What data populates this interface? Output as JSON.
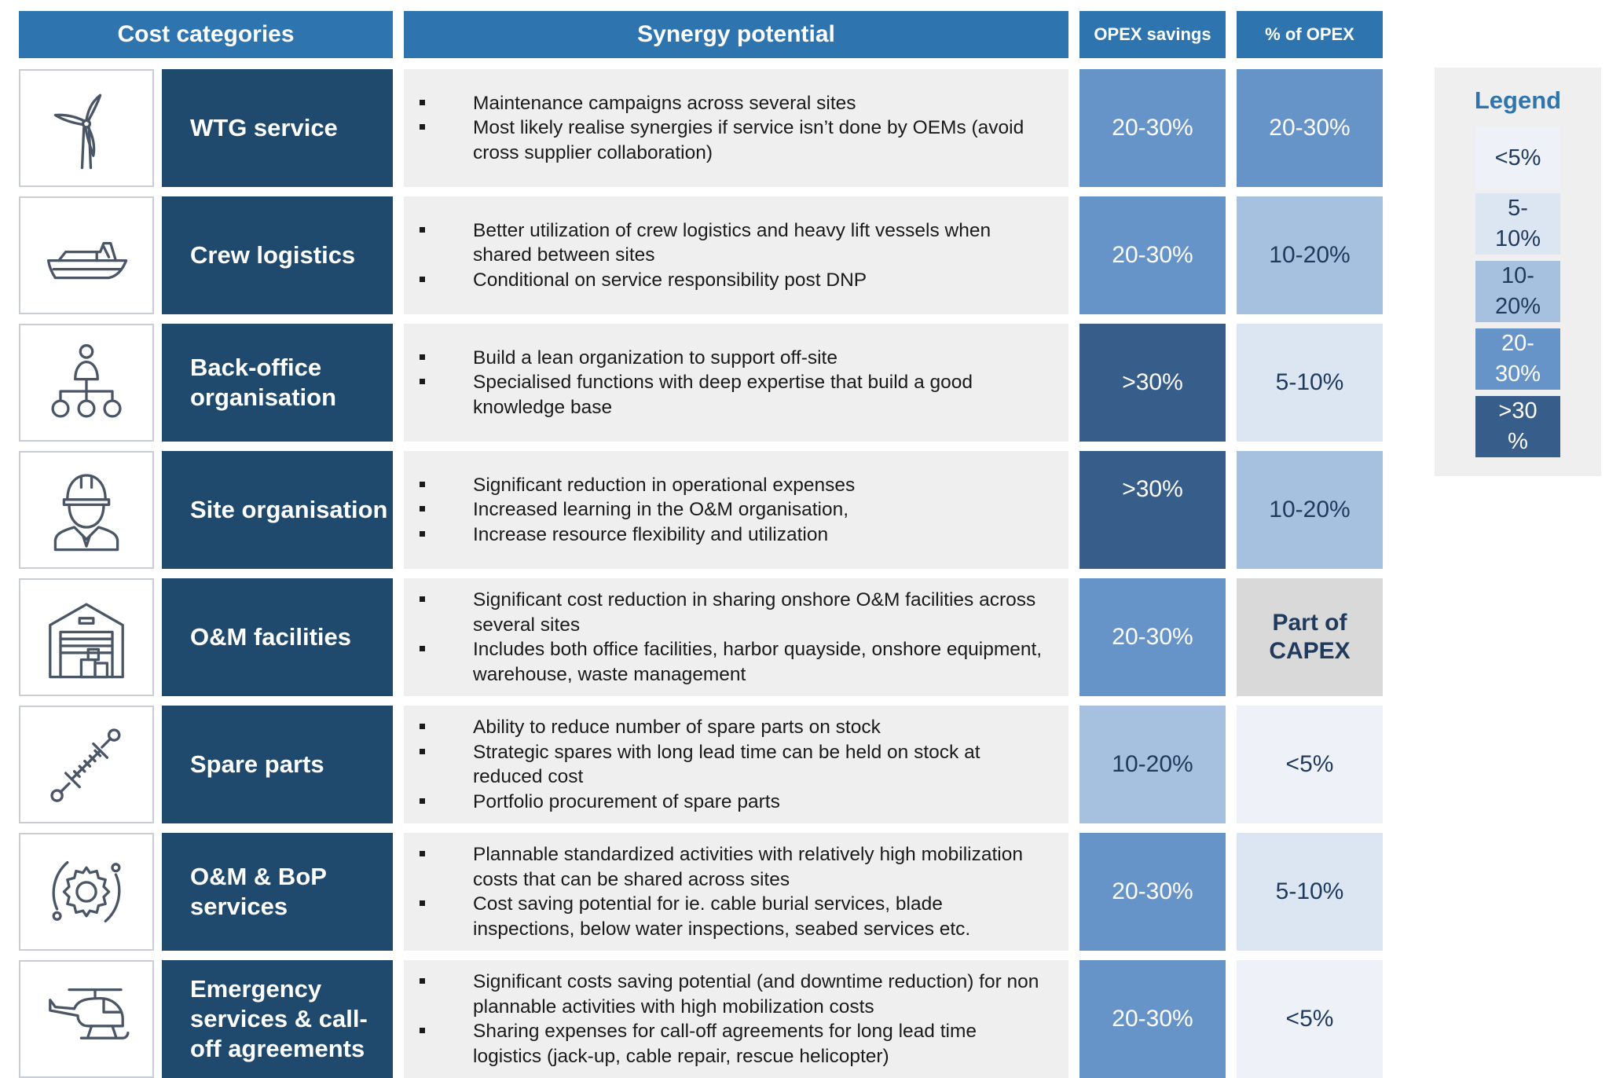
{
  "colors": {
    "header_bg": "#2e75b0",
    "category_bg": "#1f4a6e",
    "synergy_bg": "#efefef",
    "lt5": "#eef2f8",
    "5_10": "#dce6f3",
    "10_20": "#a6c1e0",
    "20_30": "#6694c9",
    "gt30": "#375d8a",
    "capex": "#d9d9d9"
  },
  "headers": {
    "cost_categories": "Cost categories",
    "synergy_potential": "Synergy potential",
    "opex_savings": "OPEX savings",
    "pct_of_opex": "% of OPEX"
  },
  "rows": [
    {
      "icon": "wind-turbine-icon",
      "category": "WTG service",
      "bullets": [
        "Maintenance campaigns across several sites",
        "Most likely realise synergies if service isn’t done by OEMs (avoid cross supplier collaboration)"
      ],
      "opex_savings": "20-30%",
      "opex_savings_level": "20_30",
      "pct_of_opex": "20-30%",
      "pct_of_opex_level": "20_30"
    },
    {
      "icon": "boat-icon",
      "category": "Crew logistics",
      "bullets": [
        "Better utilization of crew logistics and heavy lift vessels when shared between sites",
        "Conditional on service responsibility post DNP"
      ],
      "opex_savings": "20-30%",
      "opex_savings_level": "20_30",
      "pct_of_opex": "10-20%",
      "pct_of_opex_level": "10_20"
    },
    {
      "icon": "org-chart-icon",
      "category": "Back-office organisation",
      "bullets": [
        "Build a lean organization to support off-site",
        "Specialised functions with deep expertise that build a good knowledge base"
      ],
      "opex_savings": ">30%",
      "opex_savings_level": "gt30",
      "pct_of_opex": "5-10%",
      "pct_of_opex_level": "5_10"
    },
    {
      "icon": "worker-helmet-icon",
      "category": "Site organisation",
      "bullets": [
        "Significant reduction in operational expenses",
        "Increased learning in the O&M organisation,",
        "Increase resource flexibility and utilization"
      ],
      "opex_savings": ">30%",
      "opex_savings_level": "gt30",
      "pct_of_opex": "10-20%",
      "pct_of_opex_level": "10_20"
    },
    {
      "icon": "warehouse-icon",
      "category": "O&M facilities",
      "bullets": [
        "Significant cost reduction in sharing onshore O&M facilities across several sites",
        "Includes both office facilities, harbor quayside, onshore equipment, warehouse, waste management"
      ],
      "opex_savings": "20-30%",
      "opex_savings_level": "20_30",
      "pct_of_opex": "Part of CAPEX",
      "pct_of_opex_level": "capex"
    },
    {
      "icon": "shock-absorber-icon",
      "category": "Spare parts",
      "bullets": [
        "Ability to reduce number of spare parts on stock",
        "Strategic spares with long lead time can be held on stock at reduced cost",
        "Portfolio procurement of spare parts"
      ],
      "opex_savings": "10-20%",
      "opex_savings_level": "10_20",
      "pct_of_opex": "<5%",
      "pct_of_opex_level": "lt5"
    },
    {
      "icon": "gear-cycle-icon",
      "category": "O&M & BoP services",
      "bullets": [
        "Plannable standardized activities with relatively high mobilization costs that can be shared across sites",
        "Cost saving potential for ie. cable burial services, blade inspections, below water inspections, seabed services etc."
      ],
      "opex_savings": "20-30%",
      "opex_savings_level": "20_30",
      "pct_of_opex": "5-10%",
      "pct_of_opex_level": "5_10"
    },
    {
      "icon": "helicopter-icon",
      "category": "Emergency services & call-off agreements",
      "bullets": [
        "Significant costs saving potential (and downtime reduction) for non plannable activities with high mobilization costs",
        "Sharing expenses for call-off agreements for long lead time logistics (jack-up, cable repair, rescue helicopter)"
      ],
      "opex_savings": "20-30%",
      "opex_savings_level": "20_30",
      "pct_of_opex": "<5%",
      "pct_of_opex_level": "lt5"
    }
  ],
  "legend": {
    "title": "Legend",
    "items": [
      {
        "label": "<5%",
        "level": "lt5"
      },
      {
        "label": "5-\n10%",
        "level": "5_10"
      },
      {
        "label": "10-\n20%",
        "level": "10_20"
      },
      {
        "label": "20-\n30%",
        "level": "20_30"
      },
      {
        "label": ">30\n%",
        "level": "gt30"
      }
    ]
  }
}
